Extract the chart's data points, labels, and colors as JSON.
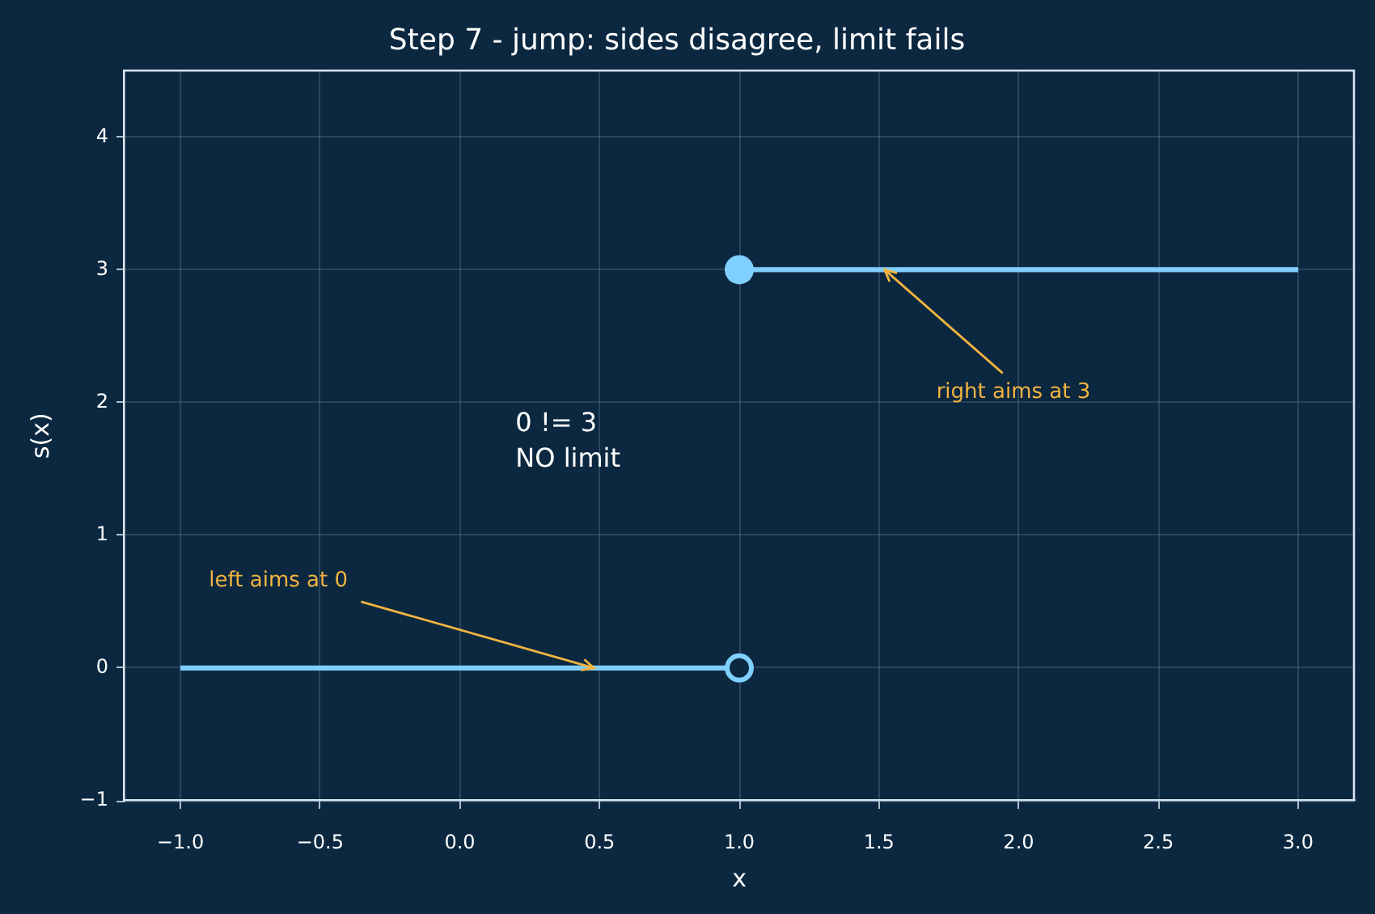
{
  "chart_data": {
    "type": "line",
    "title": "Step 7 - jump: sides disagree, limit fails",
    "xlabel": "x",
    "ylabel": "s(x)",
    "xlim": [
      -1.2,
      3.2
    ],
    "ylim": [
      -1,
      4.5
    ],
    "xticks": [
      {
        "value": -1,
        "label": "−1.0"
      },
      {
        "value": -0.5,
        "label": "−0.5"
      },
      {
        "value": 0,
        "label": "0.0"
      },
      0.5,
      {
        "value": 1,
        "label": "1.0"
      },
      1.5,
      {
        "value": 2,
        "label": "2.0"
      },
      2.5,
      {
        "value": 3,
        "label": "3.0"
      }
    ],
    "yticks": [
      {
        "value": -1,
        "label": "−1"
      },
      0,
      1,
      2,
      3,
      4
    ],
    "grid": true,
    "legend": false,
    "line_style": "solid",
    "marker": "none",
    "series": [
      {
        "color": "#80d0ff",
        "x": [
          -1,
          1
        ],
        "values": [
          0,
          0
        ]
      },
      {
        "color": "#80d0ff",
        "x": [
          1,
          3
        ],
        "values": [
          3,
          3
        ]
      },
      {
        "type": "scatter",
        "marker": "circle",
        "color": "#80d0ff",
        "x": [
          1
        ],
        "values": [
          0
        ]
      },
      {
        "type": "scatter",
        "marker": "circle",
        "color": "#80d0ff",
        "x": [
          1
        ],
        "values": [
          3
        ]
      }
    ],
    "annotations": [
      "0 != 3\nNO limit",
      {
        "text": "left aims at 0",
        "x": 0.48,
        "y": 0
      },
      {
        "text": "right aims at 3",
        "x": 1.52,
        "y": 3
      }
    ]
  }
}
